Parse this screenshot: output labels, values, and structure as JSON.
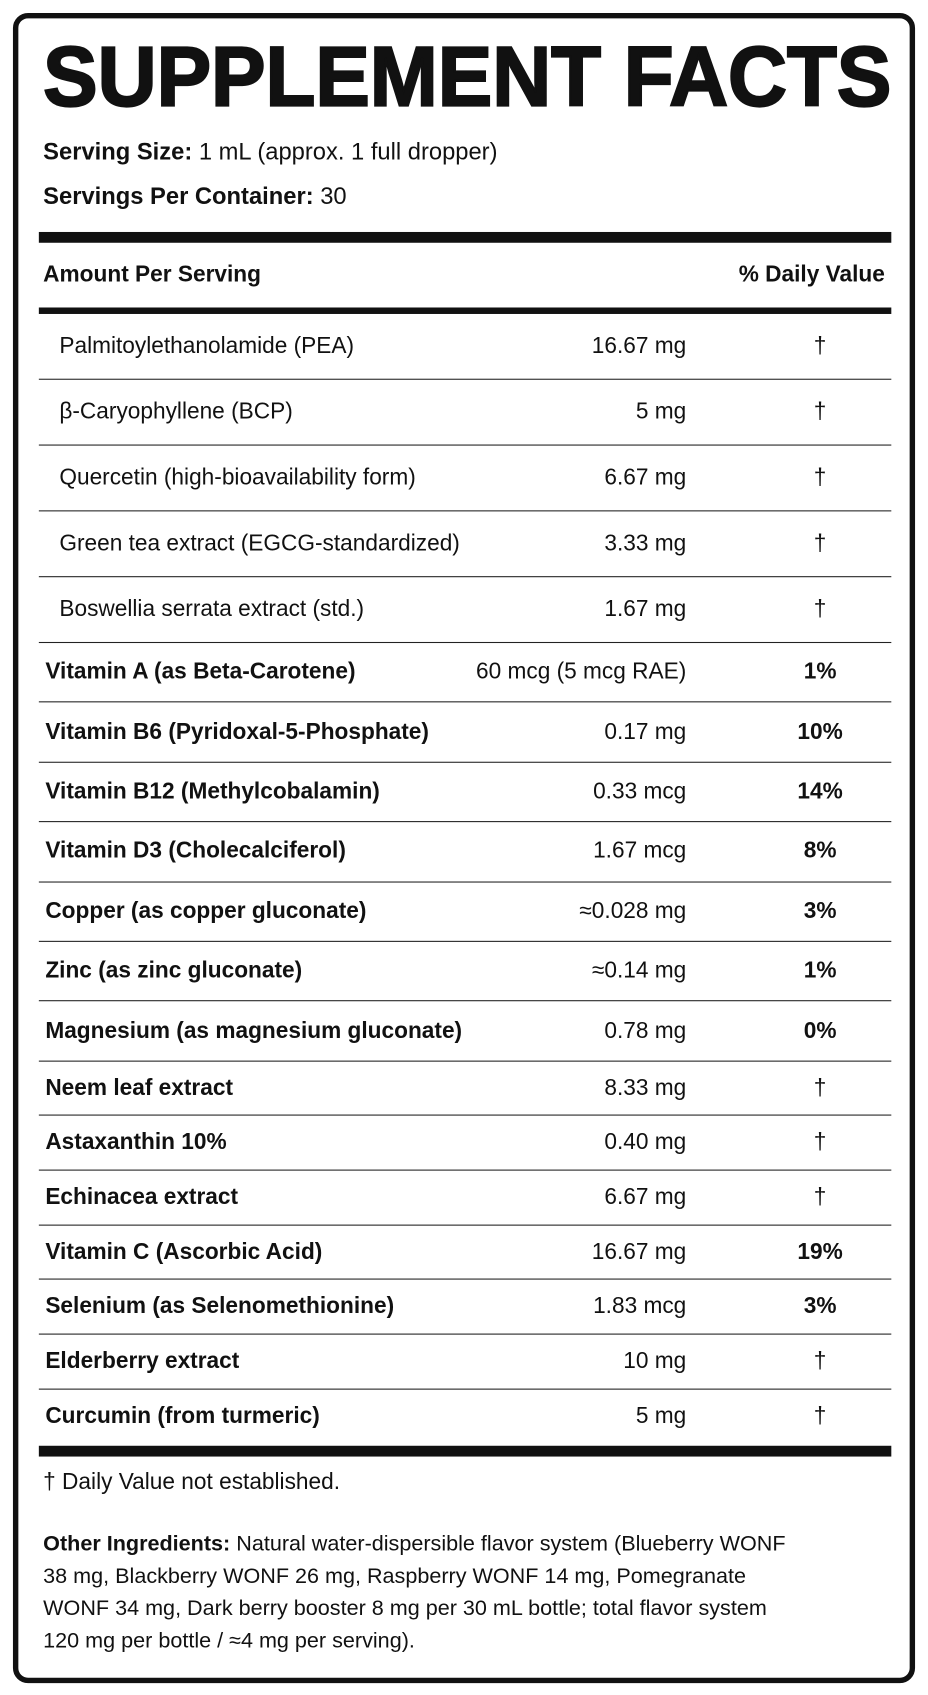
{
  "title": "SUPPLEMENT FACTS",
  "serving": {
    "size_label": "Serving Size:",
    "size": "1 mL (approx. 1 full dropper)",
    "per_container_label": "Servings Per Container:",
    "per_container": "30"
  },
  "header": {
    "amount": "Amount Per Serving",
    "daily_value": "% Daily Value"
  },
  "blend_rows": [
    [
      "Palmitoylethanolamide (PEA)",
      "16.67 mg",
      "†"
    ],
    [
      "β-Caryophyllene (BCP)",
      "5 mg",
      "†"
    ],
    [
      "Quercetin (high-bioavailability form)",
      "6.67 mg",
      "†"
    ],
    [
      "Green tea extract (EGCG-standardized)",
      "3.33 mg",
      "†"
    ],
    [
      "Boswellia serrata extract (std.)",
      "1.67 mg",
      "†"
    ]
  ],
  "nutrient_rows": [
    [
      "Vitamin A (as Beta-Carotene)",
      "60 mcg (5 mcg RAE)",
      "1%"
    ],
    [
      "Vitamin B6 (Pyridoxal-5-Phosphate)",
      "0.17 mg",
      "10%"
    ],
    [
      "Vitamin B12 (Methylcobalamin)",
      "0.33 mcg",
      "14%"
    ],
    [
      "Vitamin D3 (Cholecalciferol)",
      "1.67 mcg",
      "8%"
    ],
    [
      "Copper (as copper gluconate)",
      "≈0.028 mg",
      "3%"
    ],
    [
      "Zinc (as zinc gluconate)",
      "≈0.14 mg",
      "1%"
    ],
    [
      "Magnesium (as magnesium gluconate)",
      "0.78 mg",
      "0%"
    ],
    [
      "Neem leaf extract",
      "8.33 mg",
      "†"
    ],
    [
      "Astaxanthin 10%",
      "0.40 mg",
      "†"
    ],
    [
      "Echinacea extract",
      "6.67 mg",
      "†"
    ],
    [
      "Vitamin C (Ascorbic Acid)",
      "16.67 mg",
      "19%"
    ],
    [
      "Selenium (as Selenomethionine)",
      "1.83 mcg",
      "3%"
    ],
    [
      "Elderberry extract",
      "10 mg",
      "†"
    ],
    [
      "Curcumin (from turmeric)",
      "5 mg",
      "†"
    ]
  ],
  "footnote": "† Daily Value not established.",
  "other_ingredients": {
    "label": "Other Ingredients:",
    "text": "Natural water-dispersible flavor system (Blueberry WONF 38 mg, Blackberry WONF 26 mg, Raspberry WONF 14 mg, Pomegranate WONF 34 mg, Dark berry booster 8 mg per 30 mL bottle; total flavor system 120 mg per bottle / ≈4 mg per serving)."
  }
}
